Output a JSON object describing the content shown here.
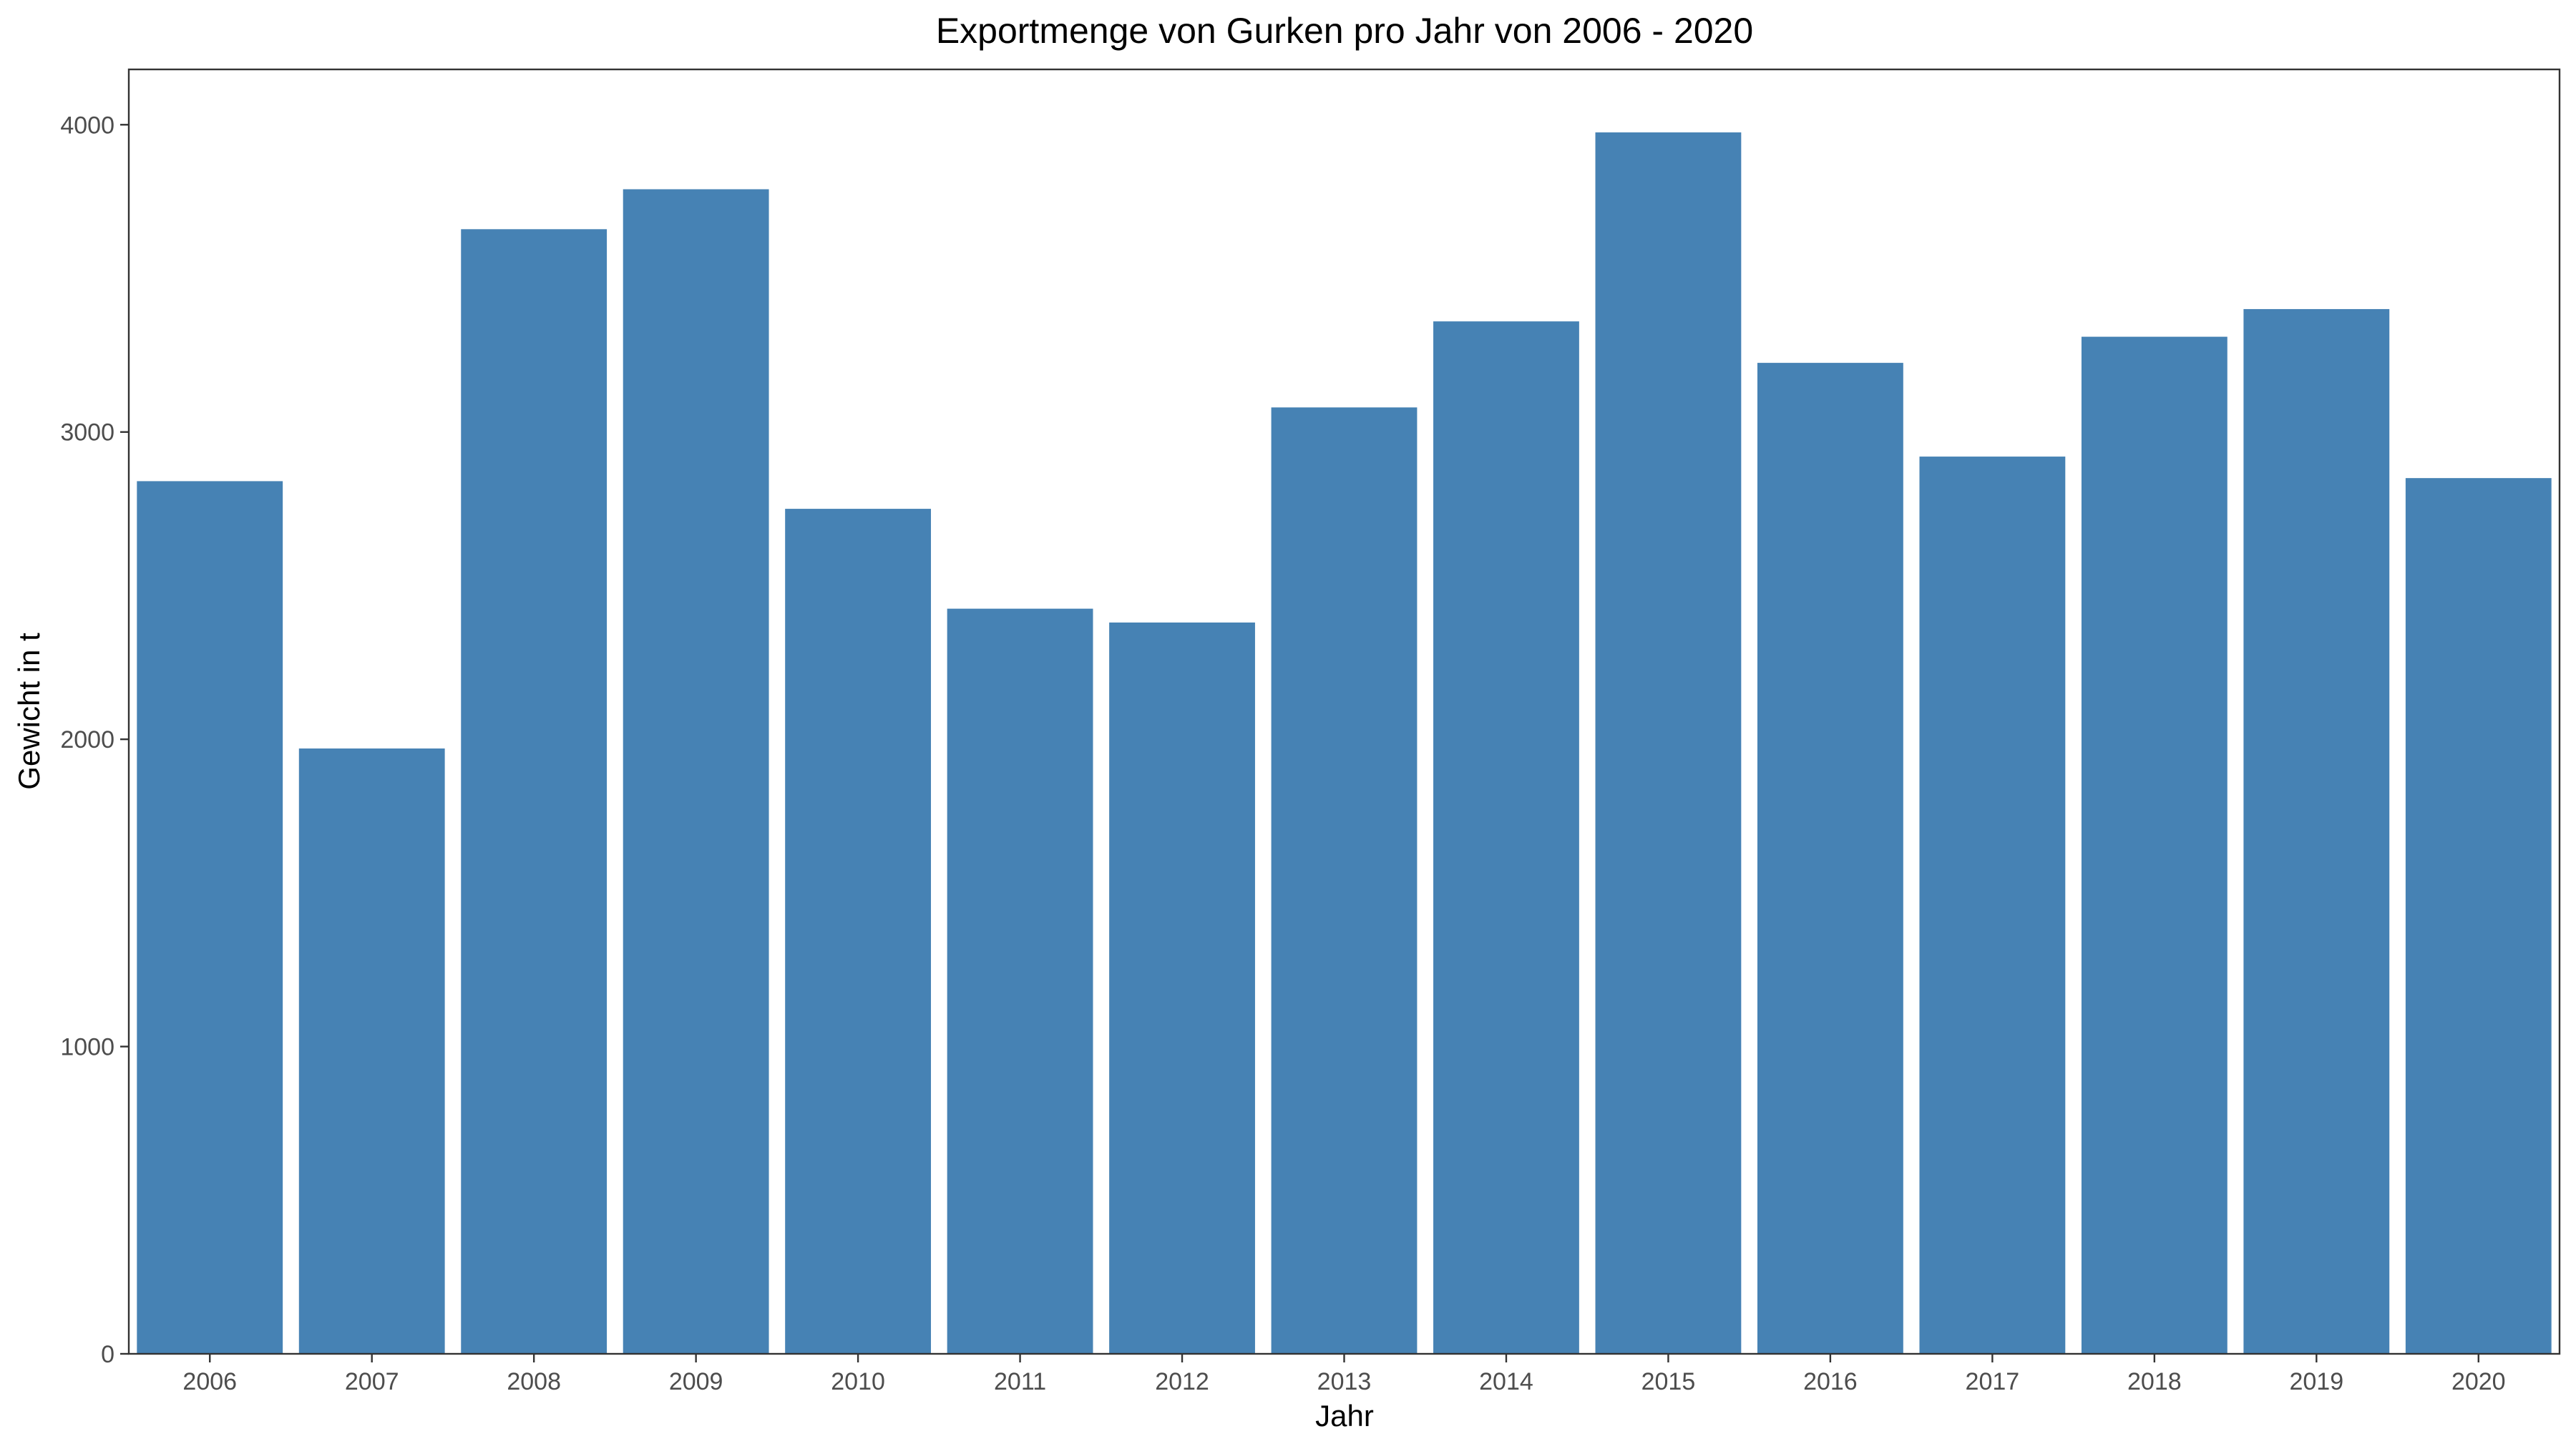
{
  "chart_data": {
    "type": "bar",
    "title": "Exportmenge von Gurken pro Jahr von 2006 - 2020",
    "xlabel": "Jahr",
    "ylabel": "Gewicht in t",
    "categories": [
      "2006",
      "2007",
      "2008",
      "2009",
      "2010",
      "2011",
      "2012",
      "2013",
      "2014",
      "2015",
      "2016",
      "2017",
      "2018",
      "2019",
      "2020"
    ],
    "values": [
      2840,
      1970,
      3660,
      3790,
      2750,
      2425,
      2380,
      3080,
      3360,
      3975,
      3225,
      2920,
      3310,
      3400,
      2850
    ],
    "ylim": [
      0,
      4180
    ],
    "yticks": [
      0,
      1000,
      2000,
      3000,
      4000
    ],
    "bar_color": "#4682B4",
    "grid": false,
    "legend": "none"
  }
}
